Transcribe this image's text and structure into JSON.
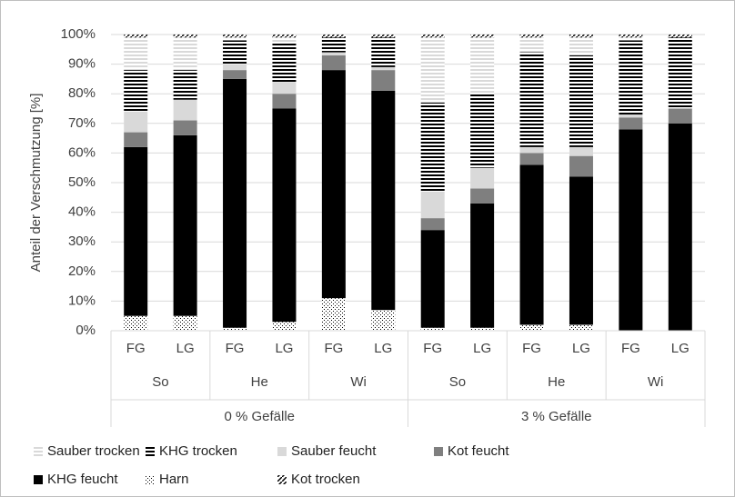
{
  "chart_data": {
    "type": "stacked_bar",
    "y_label": "Anteil der Verschmutzung [%]",
    "categories": [
      "FG",
      "LG",
      "FG",
      "LG",
      "FG",
      "LG",
      "FG",
      "LG",
      "FG",
      "LG",
      "FG",
      "LG"
    ],
    "groups": [
      "So",
      "He",
      "Wi",
      "So",
      "He",
      "Wi"
    ],
    "outer_groups": [
      "0 % Gefälle",
      "3 % Gefälle"
    ],
    "ylim": [
      0,
      100
    ],
    "yticks": [
      {
        "value": 0,
        "label": "0%"
      },
      {
        "value": 10,
        "label": "10%"
      },
      {
        "value": 20,
        "label": "20%"
      },
      {
        "value": 30,
        "label": "30%"
      },
      {
        "value": 40,
        "label": "40%"
      },
      {
        "value": 50,
        "label": "50%"
      },
      {
        "value": 60,
        "label": "60%"
      },
      {
        "value": 70,
        "label": "70%"
      },
      {
        "value": 80,
        "label": "80%"
      },
      {
        "value": 90,
        "label": "90%"
      },
      {
        "value": 100,
        "label": "100%"
      }
    ],
    "grid": true,
    "series": [
      {
        "name": "Sauber trocken",
        "color": "#d9d9d9",
        "pattern": "hstripe",
        "values": [
          11,
          11,
          1,
          2,
          0,
          0,
          22,
          19,
          5,
          6,
          1,
          0
        ]
      },
      {
        "name": "KHG trocken",
        "color": "#000000",
        "pattern": "hstripe",
        "values": [
          14,
          10,
          8,
          13,
          5,
          10,
          30,
          25,
          32,
          31,
          25,
          24
        ]
      },
      {
        "name": "Sauber feucht",
        "color": "#d9d9d9",
        "pattern": "solid",
        "values": [
          7,
          7,
          2,
          4,
          1,
          1,
          9,
          7,
          2,
          3,
          1,
          0
        ]
      },
      {
        "name": "Kot feucht",
        "color": "#7f7f7f",
        "pattern": "solid",
        "values": [
          5,
          5,
          3,
          5,
          5,
          7,
          4,
          5,
          4,
          7,
          4,
          5
        ]
      },
      {
        "name": "KHG feucht",
        "color": "#000000",
        "pattern": "solid",
        "values": [
          57,
          61,
          84,
          72,
          77,
          74,
          33,
          42,
          54,
          50,
          68,
          70
        ]
      },
      {
        "name": "Harn",
        "color": "#000000",
        "pattern": "dots",
        "values": [
          5,
          5,
          1,
          3,
          11,
          7,
          1,
          1,
          2,
          2,
          0,
          0
        ]
      },
      {
        "name": "Kot trocken",
        "color": "#000000",
        "pattern": "diag",
        "values": [
          1,
          1,
          1,
          1,
          1,
          1,
          1,
          1,
          1,
          1,
          1,
          1
        ]
      }
    ],
    "stack_order": [
      "Harn",
      "KHG feucht",
      "Kot feucht",
      "Sauber feucht",
      "KHG trocken",
      "Sauber trocken",
      "Kot trocken"
    ]
  }
}
